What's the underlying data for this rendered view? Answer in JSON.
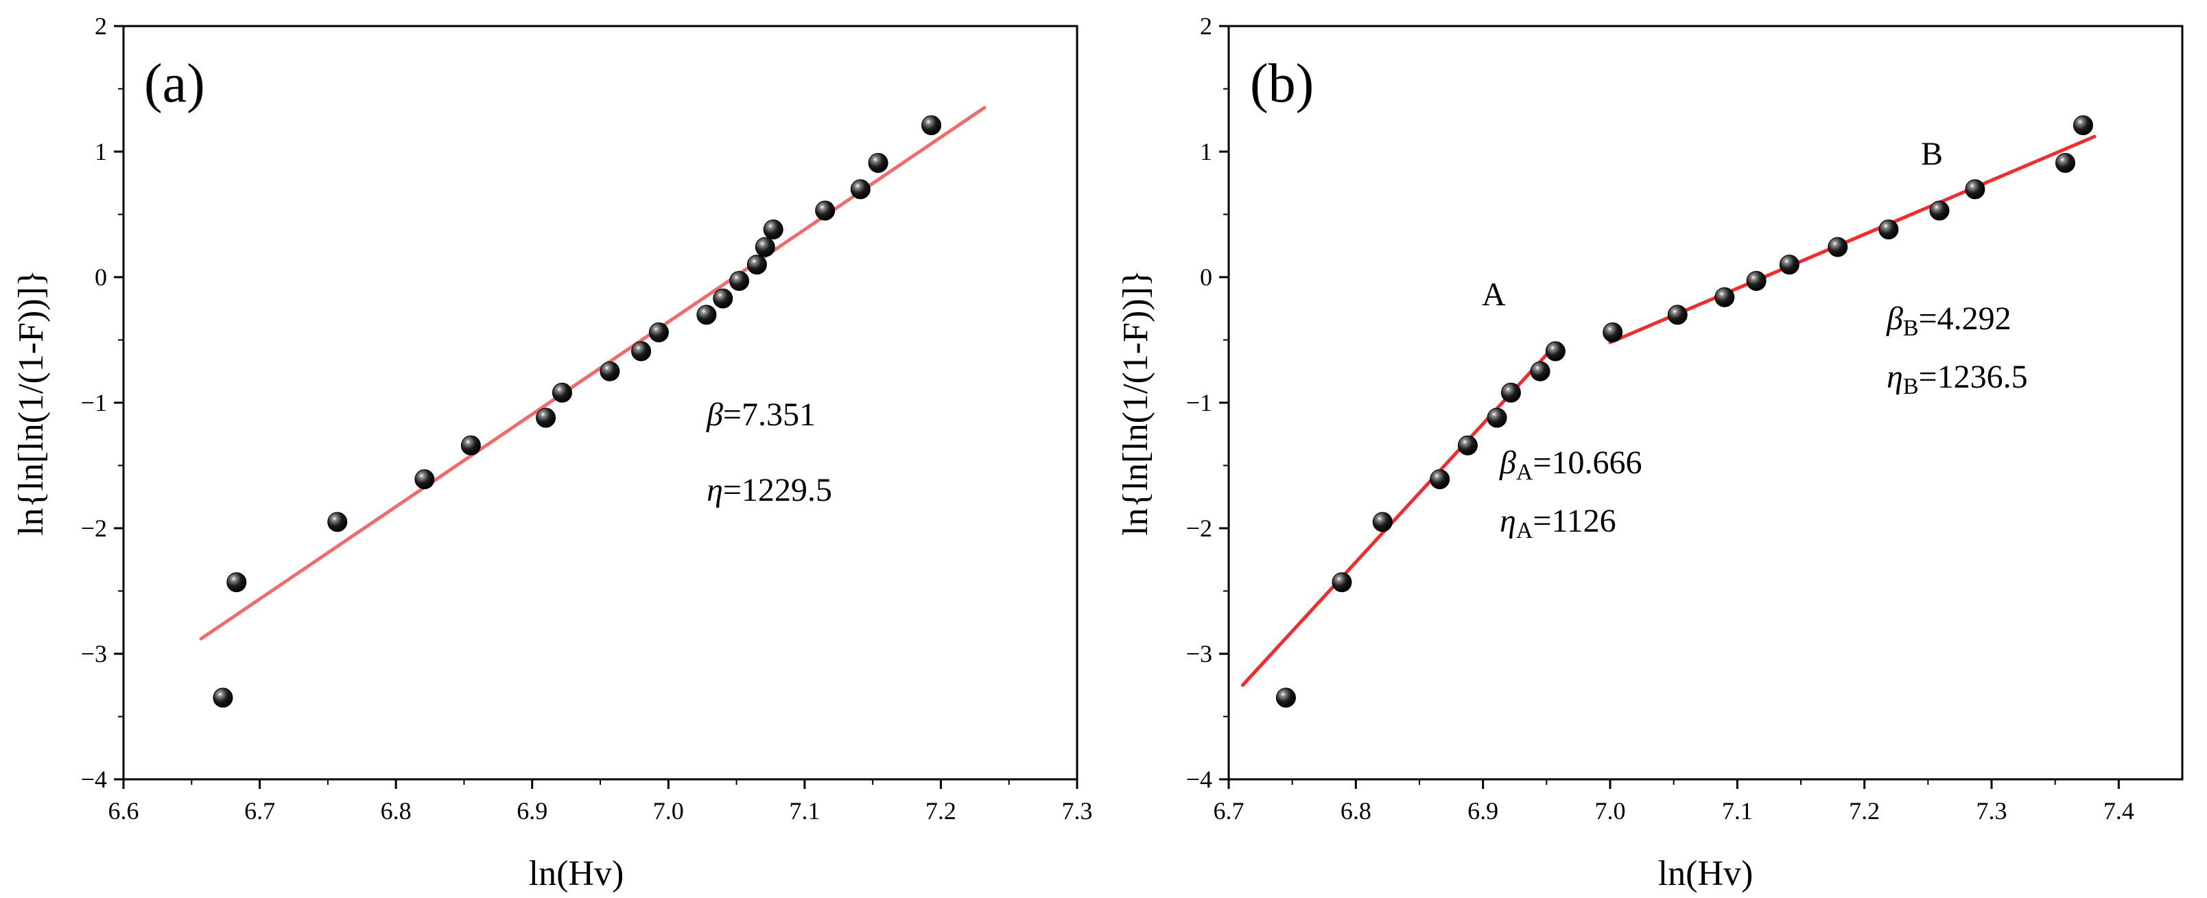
{
  "chart_data": [
    {
      "type": "scatter",
      "panel_label": "(a)",
      "xlabel": "ln(Hv)",
      "ylabel": "ln{ln[ln(1/(1-F))]}",
      "xlim": [
        6.6,
        7.3
      ],
      "ylim": [
        -4,
        2
      ],
      "xticks": [
        6.6,
        6.7,
        6.8,
        6.9,
        7.0,
        7.1,
        7.2,
        7.3
      ],
      "xtick_labels": [
        "6.6",
        "6.7",
        "6.8",
        "6.9",
        "7.0",
        "7.1",
        "7.2",
        "7.3"
      ],
      "yticks": [
        -4,
        -3,
        -2,
        -1,
        0,
        1,
        2
      ],
      "ytick_labels": [
        "−4",
        "−3",
        "−2",
        "−1",
        "0",
        "1",
        "2"
      ],
      "points": {
        "x": [
          6.673,
          6.683,
          6.757,
          6.821,
          6.855,
          6.91,
          6.922,
          6.957,
          6.98,
          6.993,
          7.028,
          7.04,
          7.052,
          7.065,
          7.071,
          7.077,
          7.115,
          7.141,
          7.154,
          7.193
        ],
        "y": [
          -3.35,
          -2.43,
          -1.95,
          -1.61,
          -1.34,
          -1.12,
          -0.92,
          -0.75,
          -0.59,
          -0.44,
          -0.3,
          -0.17,
          -0.03,
          0.1,
          0.24,
          0.38,
          0.53,
          0.7,
          0.91,
          1.21
        ]
      },
      "fits": [
        {
          "x": [
            6.657,
            7.232
          ],
          "y": [
            -2.88,
            1.35
          ],
          "color": "#f06b6b"
        }
      ],
      "annotations": [
        {
          "symbol": "β",
          "sub": "",
          "value": "=7.351"
        },
        {
          "symbol": "η",
          "sub": "",
          "value": "=1229.5"
        }
      ],
      "segment_labels": []
    },
    {
      "type": "scatter",
      "panel_label": "(b)",
      "xlabel": "ln(Hv)",
      "ylabel": "ln{ln[ln(1/(1-F))]}",
      "xlim": [
        6.7,
        7.45
      ],
      "ylim": [
        -4,
        2
      ],
      "xticks": [
        6.7,
        6.8,
        6.9,
        7.0,
        7.1,
        7.2,
        7.3,
        7.4
      ],
      "xtick_labels": [
        "6.7",
        "6.8",
        "6.9",
        "7.0",
        "7.1",
        "7.2",
        "7.3",
        "7.4"
      ],
      "yticks": [
        -4,
        -3,
        -2,
        -1,
        0,
        1,
        2
      ],
      "ytick_labels": [
        "−4",
        "−3",
        "−2",
        "−1",
        "0",
        "1",
        "2"
      ],
      "points": {
        "x": [
          6.745,
          6.789,
          6.821,
          6.866,
          6.888,
          6.911,
          6.922,
          6.945,
          6.957,
          7.002,
          7.053,
          7.09,
          7.115,
          7.141,
          7.179,
          7.219,
          7.259,
          7.287,
          7.358,
          7.372
        ],
        "y": [
          -3.35,
          -2.43,
          -1.95,
          -1.61,
          -1.34,
          -1.12,
          -0.92,
          -0.75,
          -0.59,
          -0.44,
          -0.3,
          -0.16,
          -0.03,
          0.1,
          0.24,
          0.38,
          0.53,
          0.7,
          0.91,
          1.21
        ]
      },
      "fits": [
        {
          "x": [
            6.711,
            6.957
          ],
          "y": [
            -3.25,
            -0.54
          ],
          "color": "#ef2d2d"
        },
        {
          "x": [
            7.0,
            7.381
          ],
          "y": [
            -0.52,
            1.12
          ],
          "color": "#ef2d2d"
        }
      ],
      "annotations": [
        {
          "symbol": "β",
          "sub": "A",
          "value": "=10.666"
        },
        {
          "symbol": "η",
          "sub": "A",
          "value": "=1126"
        },
        {
          "symbol": "β",
          "sub": "B",
          "value": "=4.292"
        },
        {
          "symbol": "η",
          "sub": "B",
          "value": "=1236.5"
        }
      ],
      "segment_labels": [
        "A",
        "B"
      ]
    }
  ]
}
